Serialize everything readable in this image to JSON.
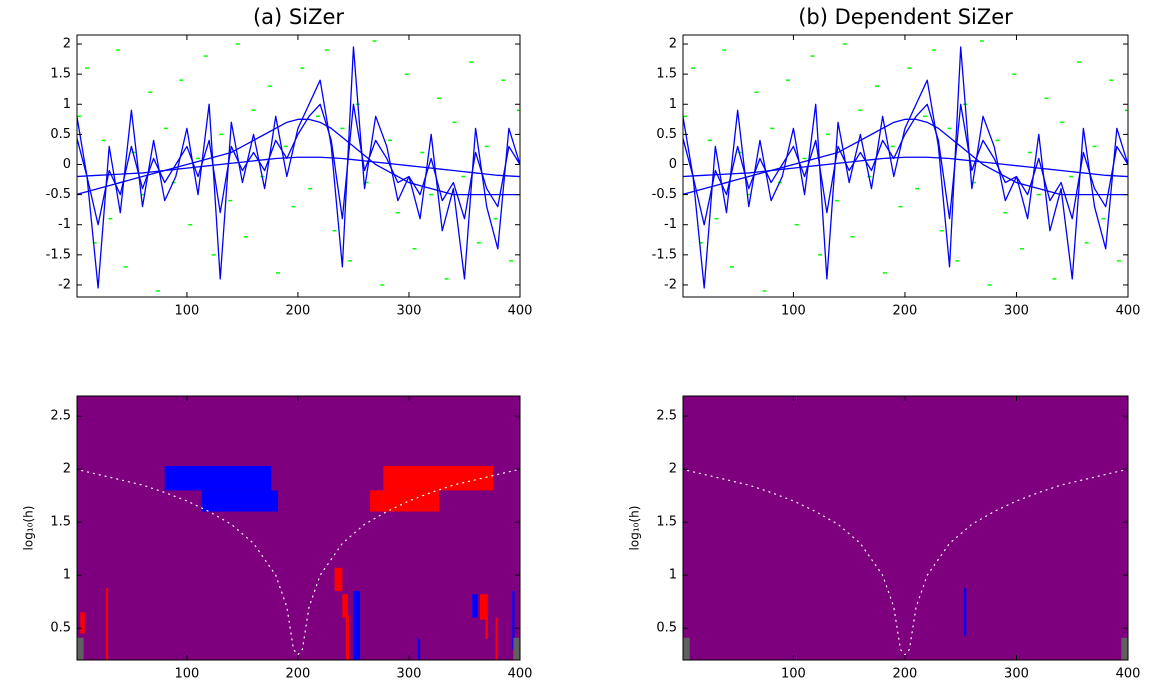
{
  "chart_data": [
    {
      "type": "line",
      "title": "(a) SiZer",
      "xlim": [
        1,
        400
      ],
      "ylim": [
        -2.2,
        2.15
      ],
      "xticks": [
        100,
        200,
        300,
        400
      ],
      "yticks": [
        -2,
        -1.5,
        -1,
        -0.5,
        0,
        0.5,
        1,
        1.5,
        2
      ],
      "x": [
        0,
        10,
        20,
        30,
        40,
        50,
        60,
        70,
        80,
        90,
        100,
        110,
        120,
        130,
        140,
        150,
        160,
        170,
        180,
        190,
        200,
        210,
        220,
        230,
        240,
        250,
        260,
        270,
        280,
        290,
        300,
        310,
        320,
        330,
        340,
        350,
        360,
        370,
        380,
        390,
        400
      ],
      "series": [
        {
          "color": "#0000ff",
          "values": [
            0.9,
            -0.2,
            -2.05,
            0.3,
            -0.8,
            0.9,
            -0.7,
            0.4,
            -0.6,
            -0.2,
            0.6,
            -0.5,
            1.0,
            -1.9,
            0.7,
            -0.3,
            0.5,
            -0.4,
            0.8,
            -0.2,
            0.6,
            1.0,
            1.4,
            0.3,
            -1.7,
            1.95,
            -0.4,
            0.8,
            0.3,
            -0.6,
            -0.2,
            -0.9,
            0.5,
            -1.1,
            -0.4,
            -1.9,
            0.6,
            -0.7,
            -1.4,
            0.6,
            0.0
          ]
        },
        {
          "color": "#0000ff",
          "values": [
            0.5,
            -0.2,
            -1.0,
            -0.1,
            -0.5,
            0.3,
            -0.4,
            0.1,
            -0.3,
            0.0,
            0.3,
            -0.2,
            0.4,
            -0.8,
            0.3,
            -0.1,
            0.2,
            -0.1,
            0.4,
            0.1,
            0.5,
            0.8,
            1.0,
            0.4,
            -0.9,
            1.0,
            -0.1,
            0.4,
            0.1,
            -0.3,
            -0.2,
            -0.5,
            0.1,
            -0.6,
            -0.3,
            -0.9,
            0.2,
            -0.4,
            -0.7,
            0.3,
            0.0
          ]
        },
        {
          "color": "#0000ff",
          "values": [
            -0.5,
            -0.45,
            -0.4,
            -0.35,
            -0.3,
            -0.25,
            -0.2,
            -0.15,
            -0.1,
            -0.05,
            0,
            0.05,
            0.1,
            0.15,
            0.2,
            0.3,
            0.4,
            0.5,
            0.6,
            0.7,
            0.75,
            0.75,
            0.7,
            0.6,
            0.45,
            0.3,
            0.15,
            0,
            -0.1,
            -0.2,
            -0.3,
            -0.35,
            -0.4,
            -0.45,
            -0.5,
            -0.5,
            -0.5,
            -0.5,
            -0.5,
            -0.5,
            -0.5
          ]
        },
        {
          "color": "#0000ff",
          "values": [
            -0.2,
            -0.19,
            -0.18,
            -0.17,
            -0.16,
            -0.15,
            -0.14,
            -0.12,
            -0.1,
            -0.08,
            -0.06,
            -0.04,
            -0.02,
            0,
            0.02,
            0.04,
            0.06,
            0.08,
            0.1,
            0.11,
            0.12,
            0.12,
            0.12,
            0.11,
            0.1,
            0.08,
            0.06,
            0.04,
            0.02,
            0,
            -0.02,
            -0.04,
            -0.06,
            -0.08,
            -0.1,
            -0.12,
            -0.14,
            -0.16,
            -0.18,
            -0.19,
            -0.2
          ]
        }
      ],
      "points": {
        "color": "#00ff00",
        "x": [
          3,
          10,
          17,
          25,
          31,
          38,
          45,
          52,
          60,
          67,
          74,
          81,
          88,
          95,
          103,
          110,
          117,
          124,
          131,
          139,
          146,
          153,
          160,
          168,
          175,
          182,
          189,
          196,
          204,
          211,
          218,
          226,
          233,
          240,
          247,
          254,
          262,
          269,
          276,
          283,
          290,
          298,
          305,
          312,
          320,
          327,
          334,
          341,
          349,
          356,
          363,
          370,
          378,
          385,
          392,
          399
        ],
        "y": [
          0.8,
          1.6,
          -1.3,
          0.4,
          -0.9,
          1.9,
          -1.7,
          0.2,
          -0.5,
          1.2,
          -2.1,
          0.6,
          -0.3,
          1.4,
          -1.0,
          0.1,
          1.8,
          -1.5,
          0.5,
          -0.6,
          2.0,
          -1.2,
          0.9,
          -0.2,
          1.3,
          -1.8,
          0.3,
          -0.7,
          1.6,
          -0.4,
          0.8,
          1.9,
          -1.1,
          0.6,
          -1.6,
          1.0,
          -0.3,
          2.05,
          -2.0,
          0.4,
          -0.8,
          1.5,
          -1.4,
          0.2,
          -0.5,
          1.1,
          -1.9,
          0.7,
          -0.2,
          1.7,
          -1.3,
          0.3,
          -0.9,
          1.4,
          -1.6,
          0.9
        ]
      }
    },
    {
      "type": "line",
      "title": "(b) Dependent SiZer",
      "xlim": [
        1,
        400
      ],
      "ylim": [
        -2.2,
        2.15
      ],
      "xticks": [
        100,
        200,
        300,
        400
      ],
      "yticks": [
        -2,
        -1.5,
        -1,
        -0.5,
        0,
        0.5,
        1,
        1.5,
        2
      ],
      "x": [
        0,
        10,
        20,
        30,
        40,
        50,
        60,
        70,
        80,
        90,
        100,
        110,
        120,
        130,
        140,
        150,
        160,
        170,
        180,
        190,
        200,
        210,
        220,
        230,
        240,
        250,
        260,
        270,
        280,
        290,
        300,
        310,
        320,
        330,
        340,
        350,
        360,
        370,
        380,
        390,
        400
      ],
      "series": [
        {
          "color": "#0000ff",
          "values": [
            0.9,
            -0.2,
            -2.05,
            0.3,
            -0.8,
            0.9,
            -0.7,
            0.4,
            -0.6,
            -0.2,
            0.6,
            -0.5,
            1.0,
            -1.9,
            0.7,
            -0.3,
            0.5,
            -0.4,
            0.8,
            -0.2,
            0.6,
            1.0,
            1.4,
            0.3,
            -1.7,
            1.95,
            -0.4,
            0.8,
            0.3,
            -0.6,
            -0.2,
            -0.9,
            0.5,
            -1.1,
            -0.4,
            -1.9,
            0.6,
            -0.7,
            -1.4,
            0.6,
            0.0
          ]
        },
        {
          "color": "#0000ff",
          "values": [
            0.5,
            -0.2,
            -1.0,
            -0.1,
            -0.5,
            0.3,
            -0.4,
            0.1,
            -0.3,
            0.0,
            0.3,
            -0.2,
            0.4,
            -0.8,
            0.3,
            -0.1,
            0.2,
            -0.1,
            0.4,
            0.1,
            0.5,
            0.8,
            1.0,
            0.4,
            -0.9,
            1.0,
            -0.1,
            0.4,
            0.1,
            -0.3,
            -0.2,
            -0.5,
            0.1,
            -0.6,
            -0.3,
            -0.9,
            0.2,
            -0.4,
            -0.7,
            0.3,
            0.0
          ]
        },
        {
          "color": "#0000ff",
          "values": [
            -0.5,
            -0.45,
            -0.4,
            -0.35,
            -0.3,
            -0.25,
            -0.2,
            -0.15,
            -0.1,
            -0.05,
            0,
            0.05,
            0.1,
            0.15,
            0.2,
            0.3,
            0.4,
            0.5,
            0.6,
            0.7,
            0.75,
            0.75,
            0.7,
            0.6,
            0.45,
            0.3,
            0.15,
            0,
            -0.1,
            -0.2,
            -0.3,
            -0.35,
            -0.4,
            -0.45,
            -0.5,
            -0.5,
            -0.5,
            -0.5,
            -0.5,
            -0.5,
            -0.5
          ]
        },
        {
          "color": "#0000ff",
          "values": [
            -0.2,
            -0.19,
            -0.18,
            -0.17,
            -0.16,
            -0.15,
            -0.14,
            -0.12,
            -0.1,
            -0.08,
            -0.06,
            -0.04,
            -0.02,
            0,
            0.02,
            0.04,
            0.06,
            0.08,
            0.1,
            0.11,
            0.12,
            0.12,
            0.12,
            0.11,
            0.1,
            0.08,
            0.06,
            0.04,
            0.02,
            0,
            -0.02,
            -0.04,
            -0.06,
            -0.08,
            -0.1,
            -0.12,
            -0.14,
            -0.16,
            -0.18,
            -0.19,
            -0.2
          ]
        }
      ],
      "points": {
        "color": "#00ff00",
        "x": [
          3,
          10,
          17,
          25,
          31,
          38,
          45,
          52,
          60,
          67,
          74,
          81,
          88,
          95,
          103,
          110,
          117,
          124,
          131,
          139,
          146,
          153,
          160,
          168,
          175,
          182,
          189,
          196,
          204,
          211,
          218,
          226,
          233,
          240,
          247,
          254,
          262,
          269,
          276,
          283,
          290,
          298,
          305,
          312,
          320,
          327,
          334,
          341,
          349,
          356,
          363,
          370,
          378,
          385,
          392,
          399
        ],
        "y": [
          0.8,
          1.6,
          -1.3,
          0.4,
          -0.9,
          1.9,
          -1.7,
          0.2,
          -0.5,
          1.2,
          -2.1,
          0.6,
          -0.3,
          1.4,
          -1.0,
          0.1,
          1.8,
          -1.5,
          0.5,
          -0.6,
          2.0,
          -1.2,
          0.9,
          -0.2,
          1.3,
          -1.8,
          0.3,
          -0.7,
          1.6,
          -0.4,
          0.8,
          1.9,
          -1.1,
          0.6,
          -1.6,
          1.0,
          -0.3,
          2.05,
          -2.0,
          0.4,
          -0.8,
          1.5,
          -1.4,
          0.2,
          -0.5,
          1.1,
          -1.9,
          0.7,
          -0.2,
          1.7,
          -1.3,
          0.3,
          -0.9,
          1.4,
          -1.6,
          0.9
        ]
      }
    },
    {
      "type": "sizer",
      "ylabel": "log₁₀(h)",
      "xlim": [
        1,
        400
      ],
      "ylim": [
        0.2,
        2.69
      ],
      "xticks": [
        100,
        200,
        300,
        400
      ],
      "yticks": [
        0.5,
        1,
        1.5,
        2,
        2.5
      ],
      "background": "#7f007f",
      "regions": [
        {
          "color": "#0000ff",
          "x": [
            80,
            176
          ],
          "y": [
            1.8,
            2.03
          ]
        },
        {
          "color": "#0000ff",
          "x": [
            113,
            182
          ],
          "y": [
            1.6,
            1.8
          ]
        },
        {
          "color": "#ff0000",
          "x": [
            277,
            376
          ],
          "y": [
            1.8,
            2.03
          ]
        },
        {
          "color": "#ff0000",
          "x": [
            265,
            327
          ],
          "y": [
            1.6,
            1.8
          ]
        },
        {
          "color": "#ff0000",
          "x": [
            233,
            240
          ],
          "y": [
            0.85,
            1.07
          ]
        },
        {
          "color": "#ff0000",
          "x": [
            240,
            245
          ],
          "y": [
            0.6,
            0.82
          ]
        },
        {
          "color": "#ff0000",
          "x": [
            243,
            246
          ],
          "y": [
            0.2,
            0.62
          ]
        },
        {
          "color": "#0000ff",
          "x": [
            250,
            256
          ],
          "y": [
            0.2,
            0.85
          ]
        },
        {
          "color": "#0000ff",
          "x": [
            357,
            362
          ],
          "y": [
            0.6,
            0.82
          ]
        },
        {
          "color": "#ff0000",
          "x": [
            364,
            371
          ],
          "y": [
            0.58,
            0.82
          ]
        },
        {
          "color": "#ff0000",
          "x": [
            369,
            371
          ],
          "y": [
            0.4,
            0.6
          ]
        },
        {
          "color": "#ff0000",
          "x": [
            4,
            8
          ],
          "y": [
            0.45,
            0.65
          ]
        },
        {
          "color": "#ff0000",
          "x": [
            27,
            29
          ],
          "y": [
            0.2,
            0.88
          ]
        },
        {
          "color": "#0000ff",
          "x": [
            393,
            395
          ],
          "y": [
            0.3,
            0.85
          ]
        },
        {
          "color": "#ff0000",
          "x": [
            378,
            380
          ],
          "y": [
            0.2,
            0.6
          ]
        },
        {
          "color": "#0000ff",
          "x": [
            308,
            310
          ],
          "y": [
            0.2,
            0.4
          ]
        },
        {
          "color": "#606060",
          "x": [
            1,
            7
          ],
          "y": [
            0.2,
            0.41
          ]
        },
        {
          "color": "#606060",
          "x": [
            394,
            400
          ],
          "y": [
            0.2,
            0.41
          ]
        }
      ],
      "boundary": {
        "color": "#ffffff",
        "x": [
          0,
          20,
          40,
          60,
          80,
          100,
          120,
          140,
          160,
          180,
          190,
          196,
          200,
          204,
          210,
          220,
          240,
          260,
          280,
          300,
          320,
          340,
          360,
          380,
          400
        ],
        "y": [
          2,
          1.95,
          1.9,
          1.85,
          1.78,
          1.7,
          1.6,
          1.48,
          1.3,
          1.0,
          0.7,
          0.3,
          0.25,
          0.3,
          0.7,
          1.0,
          1.3,
          1.48,
          1.6,
          1.7,
          1.78,
          1.85,
          1.9,
          1.95,
          2
        ]
      }
    },
    {
      "type": "sizer",
      "ylabel": "log₁₀(h)",
      "xlim": [
        1,
        400
      ],
      "ylim": [
        0.2,
        2.69
      ],
      "xticks": [
        100,
        200,
        300,
        400
      ],
      "yticks": [
        0.5,
        1,
        1.5,
        2,
        2.5
      ],
      "background": "#7f007f",
      "regions": [
        {
          "color": "#0000ff",
          "x": [
            253,
            255
          ],
          "y": [
            0.43,
            0.88
          ]
        },
        {
          "color": "#606060",
          "x": [
            1,
            7
          ],
          "y": [
            0.2,
            0.41
          ]
        },
        {
          "color": "#606060",
          "x": [
            394,
            400
          ],
          "y": [
            0.2,
            0.41
          ]
        }
      ],
      "boundary": {
        "color": "#ffffff",
        "x": [
          0,
          20,
          40,
          60,
          80,
          100,
          120,
          140,
          160,
          180,
          190,
          196,
          200,
          204,
          210,
          220,
          240,
          260,
          280,
          300,
          320,
          340,
          360,
          380,
          400
        ],
        "y": [
          2,
          1.95,
          1.9,
          1.85,
          1.78,
          1.7,
          1.6,
          1.48,
          1.3,
          1.0,
          0.7,
          0.3,
          0.25,
          0.3,
          0.7,
          1.0,
          1.3,
          1.48,
          1.6,
          1.7,
          1.78,
          1.85,
          1.9,
          1.95,
          2
        ]
      }
    }
  ]
}
